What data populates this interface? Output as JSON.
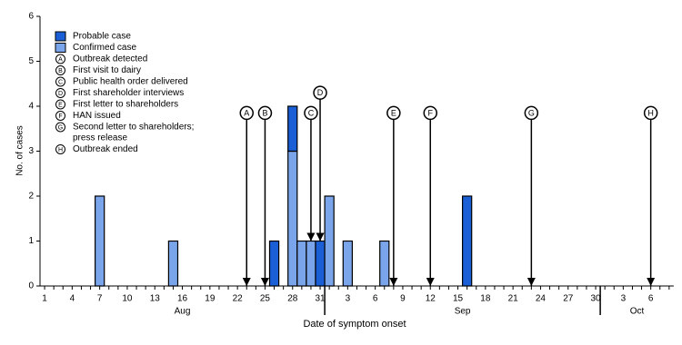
{
  "chart_data": {
    "type": "bar",
    "stacked": true,
    "y_label": "No. of cases",
    "x_label": "Date of symptom onset",
    "ylim": [
      0,
      6
    ],
    "yticks": [
      0,
      1,
      2,
      3,
      4,
      5,
      6
    ],
    "grid": false,
    "categories": [
      "1",
      null,
      null,
      "4",
      null,
      null,
      "7",
      null,
      null,
      "10",
      null,
      null,
      "13",
      null,
      null,
      "16",
      null,
      null,
      "19",
      null,
      null,
      "22",
      null,
      null,
      "25",
      null,
      null,
      "28",
      null,
      null,
      "31",
      null,
      null,
      "3",
      null,
      null,
      "6",
      null,
      null,
      "9",
      null,
      null,
      "12",
      null,
      null,
      "15",
      null,
      null,
      "18",
      null,
      null,
      "21",
      null,
      null,
      "24",
      null,
      null,
      "27",
      null,
      null,
      "30",
      null,
      null,
      "3",
      null,
      null,
      "6",
      null,
      null
    ],
    "groups": [
      {
        "label": "Aug",
        "start": 0,
        "count": 31
      },
      {
        "label": "Sep",
        "start": 31,
        "count": 30
      },
      {
        "label": "Oct",
        "start": 61,
        "count": 8
      }
    ],
    "series": [
      {
        "name": "Probable case",
        "color": "#1a5fd6",
        "values": [
          0,
          0,
          0,
          0,
          0,
          0,
          0,
          0,
          0,
          0,
          0,
          0,
          0,
          0,
          0,
          0,
          0,
          0,
          0,
          0,
          0,
          0,
          0,
          0,
          0,
          1,
          0,
          1,
          0,
          0,
          1,
          0,
          0,
          0,
          0,
          0,
          0,
          0,
          0,
          0,
          0,
          0,
          0,
          0,
          0,
          0,
          2,
          0,
          0,
          0,
          0,
          0,
          0,
          0,
          0,
          0,
          0,
          0,
          0,
          0,
          0,
          0,
          0,
          0,
          0,
          0,
          0,
          0,
          0
        ]
      },
      {
        "name": "Confirmed case",
        "color": "#7ba5ea",
        "values": [
          0,
          0,
          0,
          0,
          0,
          0,
          2,
          0,
          0,
          0,
          0,
          0,
          0,
          0,
          1,
          0,
          0,
          0,
          0,
          0,
          0,
          0,
          0,
          0,
          0,
          0,
          0,
          3,
          1,
          1,
          0,
          2,
          0,
          1,
          0,
          0,
          0,
          1,
          0,
          0,
          0,
          0,
          0,
          0,
          0,
          0,
          0,
          0,
          0,
          0,
          0,
          0,
          0,
          0,
          0,
          0,
          0,
          0,
          0,
          0,
          0,
          0,
          0,
          0,
          0,
          0,
          0,
          0,
          0
        ]
      }
    ],
    "annotations": [
      {
        "label": "A",
        "text": "Outbreak detected",
        "x": 22,
        "y": 0,
        "label_y": 3.85
      },
      {
        "label": "B",
        "text": "First visit to dairy",
        "x": 24,
        "y": 0,
        "label_y": 3.85
      },
      {
        "label": "C",
        "text": "Public health order delivered",
        "x": 29,
        "y": 1,
        "label_y": 3.85
      },
      {
        "label": "D",
        "text": "First shareholder interviews",
        "x": 30,
        "y": 1,
        "label_y": 4.3
      },
      {
        "label": "E",
        "text": "First letter to shareholders",
        "x": 38,
        "y": 0,
        "label_y": 3.85
      },
      {
        "label": "F",
        "text": "HAN issued",
        "x": 42,
        "y": 0,
        "label_y": 3.85
      },
      {
        "label": "G",
        "text": [
          "Second letter to shareholders;",
          "press release"
        ],
        "x": 53,
        "y": 0,
        "label_y": 3.85
      },
      {
        "label": "H",
        "text": "Outbreak ended",
        "x": 66,
        "y": 0,
        "label_y": 3.85
      }
    ]
  }
}
